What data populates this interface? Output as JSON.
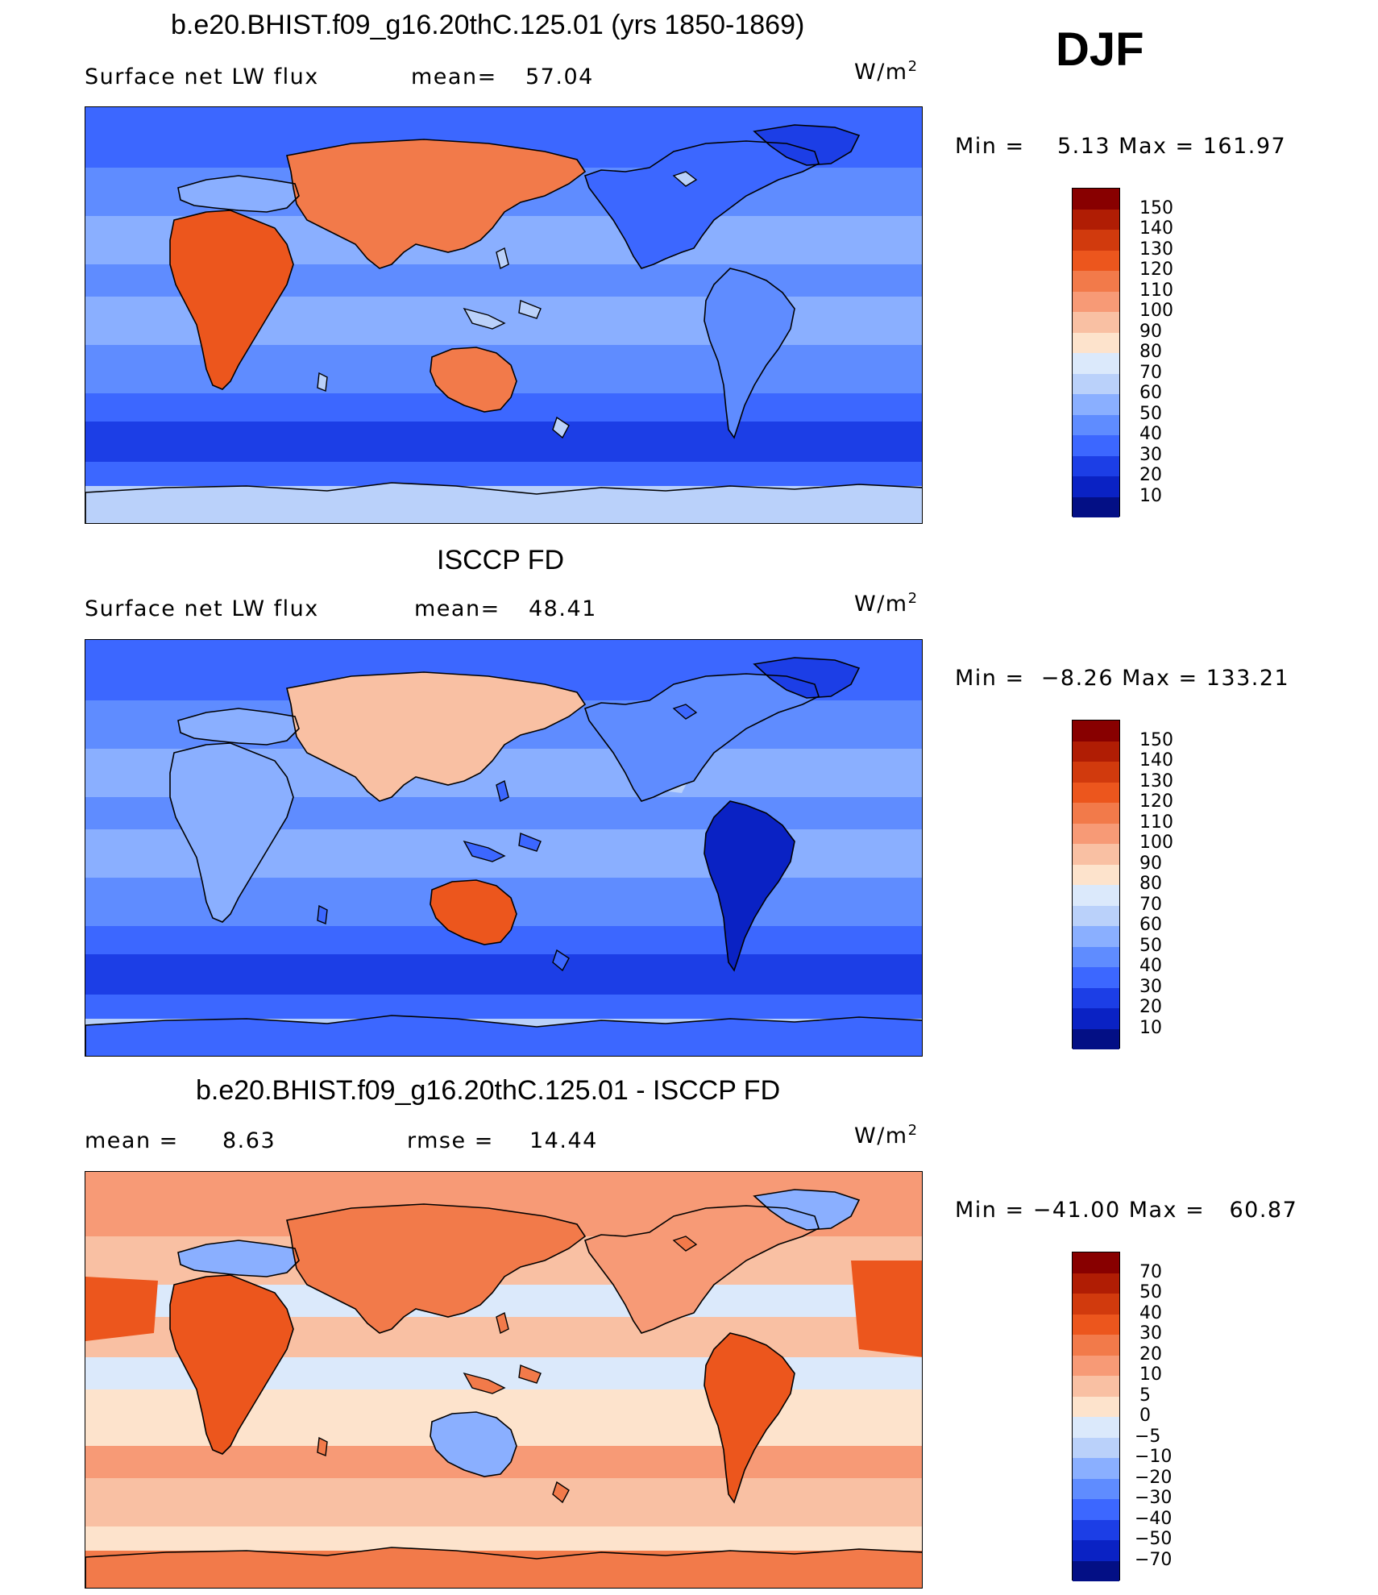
{
  "season": "DJF",
  "units_label": "W/m",
  "units_sup": "2",
  "panels": [
    {
      "title": "b.e20.BHIST.f09_g16.20thC.125.01 (yrs 1850-1869)",
      "left_label": "Surface net LW flux",
      "mid_label": "mean=",
      "mid_value": "57.04",
      "minmax": "Min =    5.13 Max = 161.97",
      "colorbar_labels": [
        "150",
        "140",
        "130",
        "120",
        "110",
        "100",
        "90",
        "80",
        "70",
        "60",
        "50",
        "40",
        "30",
        "20",
        "10"
      ],
      "colorbar_colors": [
        "#880000",
        "#b01d04",
        "#d13a0d",
        "#ec561d",
        "#f27a4a",
        "#f79a76",
        "#f9c0a3",
        "#fde3cc",
        "#dbe9fb",
        "#bad1fa",
        "#8aafff",
        "#5f8cff",
        "#3c67ff",
        "#1c3ee6",
        "#0a22c4",
        "#030f85"
      ]
    },
    {
      "title": "ISCCP FD",
      "left_label": "Surface net LW flux",
      "mid_label": "mean=",
      "mid_value": "48.41",
      "minmax": "Min =  −8.26 Max = 133.21",
      "colorbar_labels": [
        "150",
        "140",
        "130",
        "120",
        "110",
        "100",
        "90",
        "80",
        "70",
        "60",
        "50",
        "40",
        "30",
        "20",
        "10"
      ],
      "colorbar_colors": [
        "#880000",
        "#b01d04",
        "#d13a0d",
        "#ec561d",
        "#f27a4a",
        "#f79a76",
        "#f9c0a3",
        "#fde3cc",
        "#dbe9fb",
        "#bad1fa",
        "#8aafff",
        "#5f8cff",
        "#3c67ff",
        "#1c3ee6",
        "#0a22c4",
        "#030f85"
      ]
    },
    {
      "title": "b.e20.BHIST.f09_g16.20thC.125.01 - ISCCP FD",
      "left_label": "mean =",
      "left_value": "8.63",
      "mid_label": "rmse =",
      "mid_value": "14.44",
      "minmax": "Min = −41.00 Max =   60.87",
      "colorbar_labels": [
        "70",
        "50",
        "40",
        "30",
        "20",
        "10",
        "5",
        "0",
        "−5",
        "−10",
        "−20",
        "−30",
        "−40",
        "−50",
        "−70"
      ],
      "colorbar_colors": [
        "#880000",
        "#b01d04",
        "#d13a0d",
        "#ec561d",
        "#f27a4a",
        "#f79a76",
        "#f9c0a3",
        "#fde3cc",
        "#dbe9fb",
        "#bad1fa",
        "#8aafff",
        "#5f8cff",
        "#3c67ff",
        "#1c3ee6",
        "#0a22c4",
        "#030f85"
      ]
    }
  ]
}
